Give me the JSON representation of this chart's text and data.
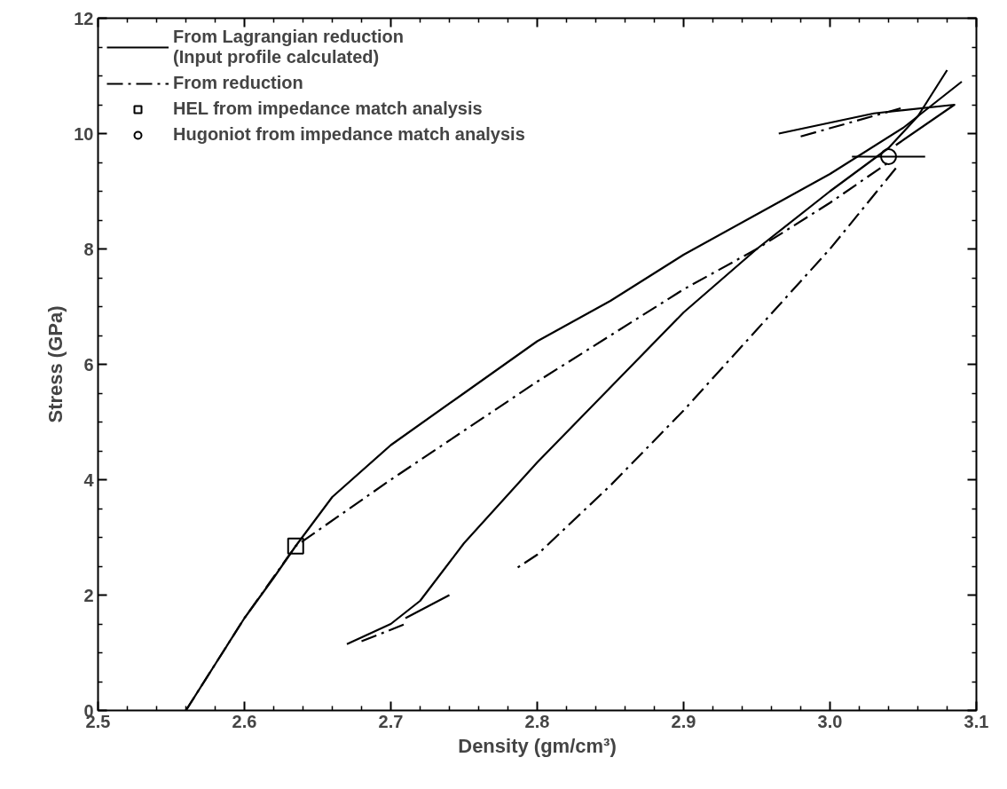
{
  "chart_data": {
    "type": "line",
    "xlabel": "Density (gm/cm³)",
    "ylabel": "Stress (GPa)",
    "xlim": [
      2.5,
      3.1
    ],
    "ylim": [
      0,
      12
    ],
    "xticks": [
      2.5,
      2.6,
      2.7,
      2.8,
      2.9,
      {
        "value": 3.0,
        "label": "3.0"
      },
      3.1
    ],
    "yticks": [
      0,
      2,
      4,
      6,
      8,
      10,
      12
    ],
    "grid": false,
    "legend": "top left",
    "series": [
      {
        "name": "From Lagrangian reduction\n(Input profile calculated)",
        "color": "#000000",
        "line_style": "solid",
        "x": [
          2.56,
          2.58,
          2.6,
          2.62,
          2.635,
          2.66,
          2.7,
          2.75,
          2.8,
          2.85,
          2.9,
          2.95,
          3.0,
          3.05,
          3.09
        ],
        "values": [
          0,
          0.8,
          1.6,
          2.3,
          2.85,
          3.7,
          4.6,
          5.5,
          6.4,
          7.1,
          7.9,
          8.6,
          9.3,
          10.1,
          10.9
        ]
      },
      {
        "color": "#000000",
        "line_style": "solid",
        "x": [
          2.965,
          3.03,
          3.085,
          3.045
        ],
        "values": [
          10.0,
          10.35,
          10.5,
          9.8
        ]
      },
      {
        "color": "#000000",
        "line_style": "solid",
        "x": [
          3.08,
          3.06,
          3.04,
          3.0,
          2.95,
          2.9,
          2.85,
          2.8,
          2.75,
          2.72,
          2.7,
          2.67
        ],
        "values": [
          11.1,
          10.3,
          9.75,
          9.0,
          8.0,
          6.9,
          5.6,
          4.3,
          2.9,
          1.9,
          1.5,
          1.15
        ]
      },
      {
        "color": "#000000",
        "line_style": "solid",
        "x": [
          2.71,
          2.74
        ],
        "values": [
          1.6,
          2.0
        ]
      },
      {
        "name": "From reduction",
        "color": "#000000",
        "line_style": "dashdot",
        "x": [
          2.56,
          2.6,
          2.635,
          2.7,
          2.75,
          2.8,
          2.85,
          2.9,
          2.95,
          3.0,
          3.04
        ],
        "values": [
          0,
          1.6,
          2.85,
          4.0,
          4.85,
          5.7,
          6.5,
          7.3,
          8.0,
          8.8,
          9.5
        ]
      },
      {
        "color": "#000000",
        "line_style": "dashdot",
        "x": [
          2.98,
          3.05
        ],
        "values": [
          9.95,
          10.45
        ]
      },
      {
        "color": "#000000",
        "line_style": "dashdot",
        "x": [
          3.045,
          3.0,
          2.95,
          2.9,
          2.85,
          2.8,
          2.785
        ],
        "values": [
          9.4,
          8.0,
          6.6,
          5.2,
          3.9,
          2.7,
          2.45
        ]
      },
      {
        "color": "#000000",
        "line_style": "dashdot",
        "x": [
          2.68,
          2.71
        ],
        "values": [
          1.2,
          1.5
        ]
      },
      {
        "name": "HEL from impedance match analysis",
        "type": "scatter",
        "marker": "square",
        "color": "#000000",
        "x": [
          2.635
        ],
        "values": [
          2.85
        ]
      },
      {
        "name": "Hugoniot from impedance match analysis",
        "type": "scatter",
        "marker": "circle",
        "color": "#000000",
        "x": [
          3.04
        ],
        "values": [
          9.6
        ],
        "xerrors": [
          0.025
        ]
      }
    ]
  }
}
